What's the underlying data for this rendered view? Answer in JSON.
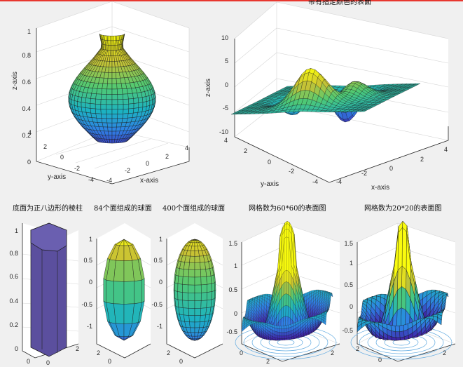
{
  "figure": {
    "top_banner_color": "#e8372f",
    "top_title_fragment": "带有指定颜色的表面"
  },
  "chart_data": [
    {
      "type": "surface",
      "title": "",
      "shape": "vase",
      "xlabel": "x-axis",
      "ylabel": "y-axis",
      "zlabel": "z-axis",
      "xticks": [
        "-4",
        "-2",
        "0",
        "2",
        "4"
      ],
      "yticks": [
        "-4",
        "-2",
        "0",
        "2",
        "4"
      ],
      "zticks": [
        "0",
        "0.2",
        "0.4",
        "0.6",
        "0.8",
        "1"
      ],
      "colormap": [
        "#3e26a8",
        "#2f7fe6",
        "#1cb3c1",
        "#50c973",
        "#c9c233",
        "#f9fb0e"
      ]
    },
    {
      "type": "surface",
      "title": "带有指定颜色的表面",
      "shape": "peaks",
      "xlabel": "x-axis",
      "ylabel": "y-axis",
      "zlabel": "z-axis",
      "xticks": [
        "-4",
        "-2",
        "0",
        "2",
        "4"
      ],
      "yticks": [
        "-4",
        "-2",
        "0",
        "2",
        "4"
      ],
      "zticks": [
        "-10",
        "-5",
        "0",
        "5",
        "10"
      ],
      "zlim": [
        -10,
        10
      ]
    },
    {
      "type": "surface",
      "title": "底面为正八边形的棱柱",
      "shape": "octagonal-prism",
      "color": "#5b4f9e",
      "zticks": [
        "0",
        "0.2",
        "0.4",
        "0.6",
        "0.8",
        "1"
      ],
      "bottom_ticks": [
        "0",
        "2",
        "0"
      ]
    },
    {
      "type": "surface",
      "title": "84个面组成的球面",
      "shape": "ellipsoid",
      "faces": 84,
      "zticks": [
        "-1",
        "-0.5",
        "0",
        "0.5",
        "1"
      ],
      "bottom_ticks": [
        "2",
        "0"
      ]
    },
    {
      "type": "surface",
      "title": "400个面组成的球面",
      "shape": "ellipsoid",
      "faces": 400,
      "zticks": [
        "-1",
        "-0.5",
        "0",
        "0.5",
        "1"
      ],
      "bottom_ticks": [
        "2",
        "0"
      ]
    },
    {
      "type": "surface",
      "title": "网格数为60*60的表面图",
      "shape": "sinc",
      "grid": "60*60",
      "zticks": [
        "-0.5",
        "0",
        "0.5",
        "1",
        "1.5"
      ],
      "bottom_ticks": [
        "0",
        "2",
        "2"
      ]
    },
    {
      "type": "surface",
      "title": "网格数为20*20的表面图",
      "shape": "sinc",
      "grid": "20*20",
      "zticks": [
        "-0.5",
        "0",
        "0.5",
        "1",
        "1.5"
      ],
      "bottom_ticks": [
        "2",
        "0",
        "2"
      ]
    }
  ]
}
